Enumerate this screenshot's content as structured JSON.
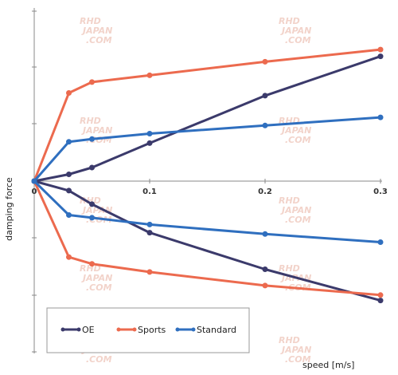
{
  "chart_data": {
    "type": "line",
    "xlabel": "speed [m/s]",
    "ylabel": "damping force",
    "x_ticks": [
      0,
      0.1,
      0.2,
      0.3
    ],
    "x_tick_labels": [
      "0",
      "0.1",
      "0.2",
      "0.3"
    ],
    "xlim": [
      0,
      0.3
    ],
    "ylim": [
      -1.0,
      1.0
    ],
    "grid": false,
    "legend_position": "bottom-left",
    "series": [
      {
        "name": "OE",
        "color": "#3b3a6b",
        "x": [
          0,
          0.03,
          0.05,
          0.1,
          0.2,
          0.3
        ],
        "upper": [
          0,
          0.05,
          0.1,
          0.28,
          0.63,
          0.92
        ],
        "lower": [
          0,
          -0.07,
          -0.17,
          -0.38,
          -0.65,
          -0.88
        ]
      },
      {
        "name": "Sports",
        "color": "#ec6a4e",
        "x": [
          0,
          0.03,
          0.05,
          0.1,
          0.2,
          0.3
        ],
        "upper": [
          0,
          0.65,
          0.73,
          0.78,
          0.88,
          0.97
        ],
        "lower": [
          0,
          -0.56,
          -0.61,
          -0.67,
          -0.77,
          -0.84
        ]
      },
      {
        "name": "Standard",
        "color": "#2f6fbf",
        "x": [
          0,
          0.03,
          0.05,
          0.1,
          0.2,
          0.3
        ],
        "upper": [
          0,
          0.29,
          0.31,
          0.35,
          0.41,
          0.47
        ],
        "lower": [
          0,
          -0.25,
          -0.27,
          -0.32,
          -0.39,
          -0.45
        ]
      }
    ]
  },
  "watermark": {
    "line1": "RHD",
    "line2": "JAPAN",
    "line3": ".COM"
  }
}
